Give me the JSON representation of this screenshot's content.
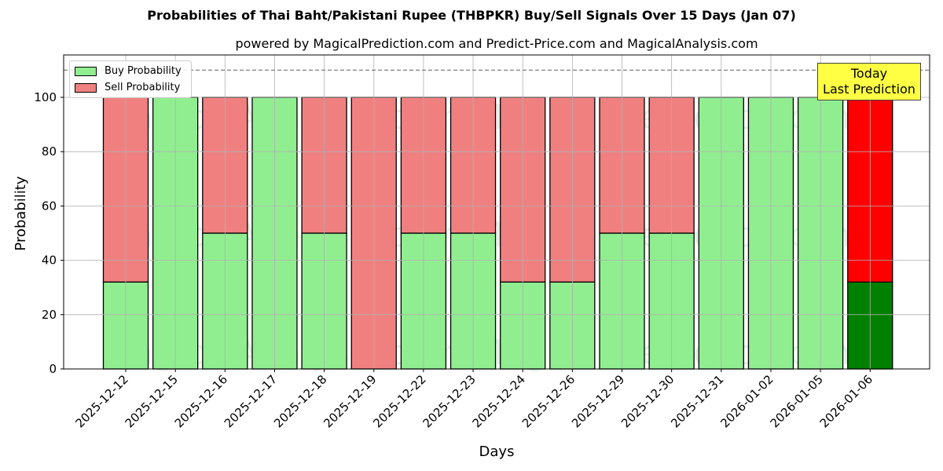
{
  "chart_data": {
    "type": "bar",
    "stacked": true,
    "title": "Probabilities of Thai Baht/Pakistani Rupee (THBPKR) Buy/Sell Signals Over 15 Days (Jan 07)",
    "subtitle": "powered by MagicalPrediction.com and Predict-Price.com and MagicalAnalysis.com",
    "xlabel": "Days",
    "ylabel": "Probability",
    "ylim": [
      0,
      115
    ],
    "yticks": [
      0,
      20,
      40,
      60,
      80,
      100
    ],
    "reference_line": 110,
    "grid": true,
    "legend_position": "upper left",
    "categories": [
      "2025-12-12",
      "2025-12-15",
      "2025-12-16",
      "2025-12-17",
      "2025-12-18",
      "2025-12-19",
      "2025-12-22",
      "2025-12-23",
      "2025-12-24",
      "2025-12-26",
      "2025-12-29",
      "2025-12-30",
      "2025-12-31",
      "2026-01-02",
      "2026-01-05",
      "2026-01-06"
    ],
    "series": [
      {
        "name": "Buy Probability",
        "color": "#90ee90",
        "values": [
          32,
          100,
          50,
          100,
          50,
          0,
          50,
          50,
          32,
          32,
          50,
          50,
          100,
          100,
          100,
          32
        ]
      },
      {
        "name": "Sell Probability",
        "color": "#f08080",
        "values": [
          68,
          0,
          50,
          0,
          50,
          100,
          50,
          50,
          68,
          68,
          50,
          50,
          0,
          0,
          0,
          68
        ]
      }
    ],
    "highlight": {
      "index": 15,
      "buy_color": "#008000",
      "sell_color": "#ff0000"
    },
    "annotation": {
      "line1": "Today",
      "line2": "Last Prediction"
    },
    "watermarks": [
      "MagicalAnalysis.com",
      "MagicalPrediction.com"
    ]
  }
}
